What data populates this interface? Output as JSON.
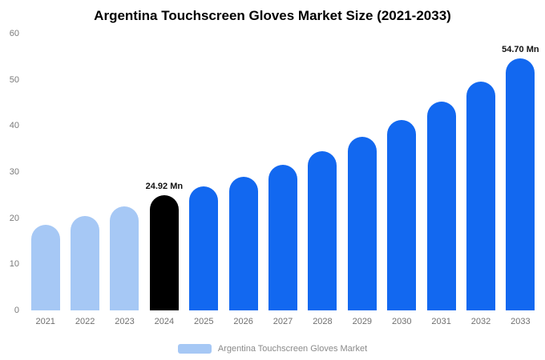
{
  "title": "Argentina Touchscreen Gloves Market Size (2021-2033)",
  "legend": {
    "label": "Argentina Touchscreen Gloves Market",
    "swatch_color": "#A6C8F5"
  },
  "colors": {
    "historic_bar": "#A6C8F5",
    "base_year_bar": "#000000",
    "forecast_bar": "#1268F0",
    "axis_text": "#7a7a7a",
    "annotation_text": "#111111"
  },
  "chart_data": {
    "type": "bar",
    "title": "Argentina Touchscreen Gloves Market Size (2021-2033)",
    "categories": [
      "2021",
      "2022",
      "2023",
      "2024",
      "2025",
      "2026",
      "2027",
      "2028",
      "2029",
      "2030",
      "2031",
      "2032",
      "2033"
    ],
    "values": [
      18.6,
      20.5,
      22.5,
      24.92,
      26.8,
      29.0,
      31.5,
      34.5,
      37.6,
      41.2,
      45.2,
      49.6,
      54.7
    ],
    "bar_colors": [
      "#A6C8F5",
      "#A6C8F5",
      "#A6C8F5",
      "#000000",
      "#1268F0",
      "#1268F0",
      "#1268F0",
      "#1268F0",
      "#1268F0",
      "#1268F0",
      "#1268F0",
      "#1268F0",
      "#1268F0"
    ],
    "annotations": [
      null,
      null,
      null,
      "24.92 Mn",
      null,
      null,
      null,
      null,
      null,
      null,
      null,
      null,
      "54.70 Mn"
    ],
    "xlabel": "",
    "ylabel": "",
    "ylim": [
      0,
      60
    ],
    "yticks": [
      0,
      10,
      20,
      30,
      40,
      50,
      60
    ],
    "grid": false,
    "legend_position": "bottom",
    "legend_entries": [
      "Argentina Touchscreen Gloves Market"
    ]
  }
}
